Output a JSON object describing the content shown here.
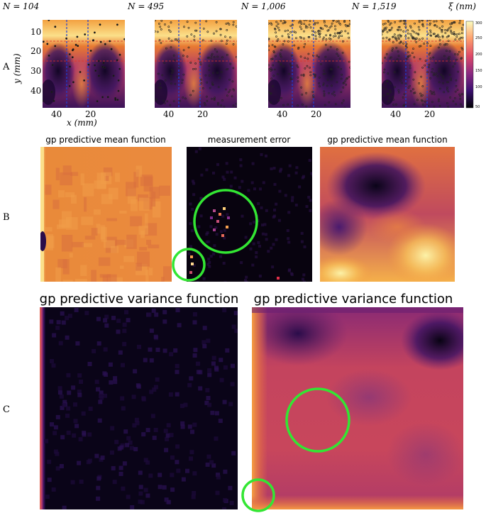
{
  "row_labels": [
    "A",
    "B",
    "C"
  ],
  "row_a": {
    "panels": [
      {
        "n_label": "N = 104"
      },
      {
        "n_label": "N = 495"
      },
      {
        "n_label": "N = 1,006"
      },
      {
        "n_label": "N = 1,519"
      }
    ],
    "y_axis_label": "y (mm)",
    "x_axis_label": "x (mm)",
    "y_ticks": [
      "10",
      "20",
      "30",
      "40"
    ],
    "x_ticks": [
      "40",
      "20"
    ],
    "colorbar": {
      "label": "ξ (nm)",
      "ticks": [
        "300",
        "250",
        "200",
        "150",
        "100",
        "50"
      ]
    }
  },
  "row_b": {
    "titles": [
      "gp predictive mean function",
      "measurement error",
      "gp predictive mean function"
    ]
  },
  "row_c": {
    "titles": [
      "gp predictive variance function",
      "gp predictive variance function"
    ]
  },
  "colors": {
    "highlight_circle": "#33e633",
    "grid_blue": "#1f3fd6",
    "grid_red": "#e0302a"
  }
}
